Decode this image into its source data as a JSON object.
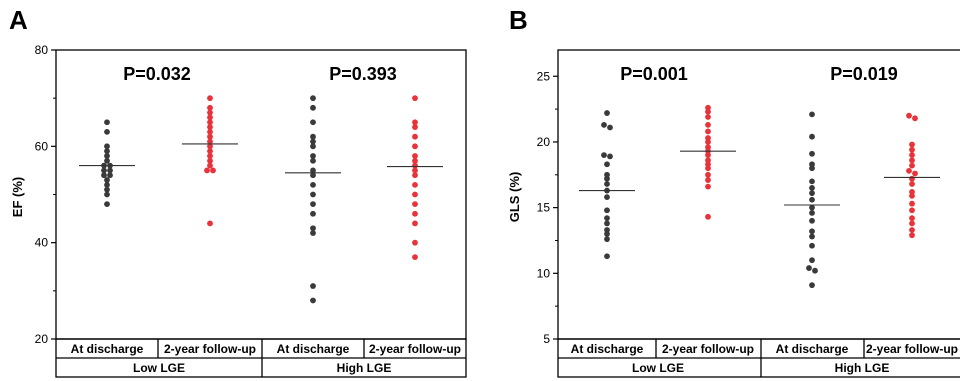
{
  "chart_data": [
    {
      "type": "scatter",
      "panel_label": "A",
      "ylabel": "EF (%)",
      "ylim": [
        20,
        80
      ],
      "yticks": [
        20,
        40,
        60,
        80
      ],
      "group_labels": [
        "Low LGE",
        "High LGE"
      ],
      "categories": [
        "At discharge",
        "2-year follow-up",
        "At discharge",
        "2-year follow-up"
      ],
      "p_values": [
        "P=0.032",
        "P=0.393"
      ],
      "series": [
        {
          "color": "#3a3a3a",
          "mean": 56.0,
          "values": [
            65,
            63,
            60,
            59,
            58,
            57,
            56,
            56,
            55,
            55,
            54,
            54,
            53,
            52,
            51,
            50,
            48
          ]
        },
        {
          "color": "#e8333a",
          "mean": 60.5,
          "values": [
            70,
            68,
            67,
            66,
            65,
            64,
            63,
            62,
            61,
            60,
            59,
            58,
            57,
            56,
            55,
            55,
            44
          ]
        },
        {
          "color": "#3a3a3a",
          "mean": 54.5,
          "values": [
            70,
            68,
            65,
            62,
            61,
            60,
            58,
            57,
            55,
            54,
            52,
            50,
            48,
            46,
            43,
            42,
            31,
            28
          ]
        },
        {
          "color": "#e8333a",
          "mean": 55.8,
          "values": [
            70,
            65,
            64,
            62,
            60,
            58,
            57,
            56,
            55,
            54,
            52,
            50,
            48,
            46,
            44,
            40,
            37
          ]
        }
      ]
    },
    {
      "type": "scatter",
      "panel_label": "B",
      "ylabel": "GLS (%)",
      "ylim": [
        5,
        27
      ],
      "yticks": [
        5,
        10,
        15,
        20,
        25
      ],
      "group_labels": [
        "Low LGE",
        "High LGE"
      ],
      "categories": [
        "At discharge",
        "2-year follow-up",
        "At discharge",
        "2-year follow-up"
      ],
      "p_values": [
        "P=0.001",
        "P=0.019"
      ],
      "series": [
        {
          "color": "#3a3a3a",
          "mean": 16.3,
          "values": [
            22.2,
            21.3,
            21.1,
            19.0,
            18.9,
            18.3,
            17.5,
            17.2,
            16.8,
            16.3,
            15.8,
            14.8,
            14.2,
            13.8,
            13.3,
            13.0,
            12.6,
            11.3
          ]
        },
        {
          "color": "#e8333a",
          "mean": 19.3,
          "values": [
            22.6,
            22.3,
            21.9,
            21.3,
            20.8,
            20.3,
            20.0,
            19.6,
            19.3,
            19.0,
            18.6,
            18.3,
            18.0,
            17.5,
            17.1,
            16.6,
            14.3
          ]
        },
        {
          "color": "#3a3a3a",
          "mean": 15.2,
          "values": [
            22.1,
            20.4,
            19.1,
            18.3,
            18.0,
            17.0,
            16.5,
            16.1,
            15.6,
            15.0,
            14.6,
            14.0,
            13.2,
            12.8,
            12.1,
            11.0,
            10.4,
            10.2,
            9.1
          ]
        },
        {
          "color": "#e8333a",
          "mean": 17.3,
          "values": [
            22.0,
            21.8,
            19.8,
            19.4,
            19.0,
            18.6,
            18.2,
            17.8,
            17.6,
            17.2,
            16.8,
            16.2,
            15.9,
            15.3,
            14.8,
            14.2,
            13.8,
            13.3,
            12.9
          ]
        }
      ]
    }
  ]
}
